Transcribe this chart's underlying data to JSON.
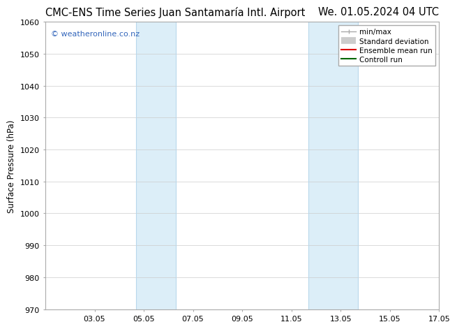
{
  "title_left": "CMC-ENS Time Series Juan Santamaría Intl. Airport",
  "title_right": "We. 01.05.2024 04 UTC",
  "ylabel": "Surface Pressure (hPa)",
  "watermark": "© weatheronline.co.nz",
  "ylim": [
    970,
    1060
  ],
  "yticks": [
    970,
    980,
    990,
    1000,
    1010,
    1020,
    1030,
    1040,
    1050,
    1060
  ],
  "xlim": [
    0,
    16
  ],
  "xtick_labels": [
    "03.05",
    "05.05",
    "07.05",
    "09.05",
    "11.05",
    "13.05",
    "15.05",
    "17.05"
  ],
  "xtick_positions": [
    2,
    4,
    6,
    8,
    10,
    12,
    14,
    16
  ],
  "shaded_bands": [
    {
      "x_start": 3.7,
      "x_end": 5.3,
      "color": "#dceef8"
    },
    {
      "x_start": 10.7,
      "x_end": 12.7,
      "color": "#dceef8"
    }
  ],
  "vertical_lines": [
    {
      "x": 3.7,
      "color": "#b8d8ec",
      "lw": 0.8
    },
    {
      "x": 5.3,
      "color": "#b8d8ec",
      "lw": 0.8
    },
    {
      "x": 10.7,
      "color": "#b8d8ec",
      "lw": 0.8
    },
    {
      "x": 12.7,
      "color": "#b8d8ec",
      "lw": 0.8
    }
  ],
  "watermark_color": "#3366bb",
  "background_color": "#ffffff",
  "plot_bg_color": "#ffffff",
  "grid_color": "#cccccc",
  "title_fontsize": 10.5,
  "axis_label_fontsize": 8.5,
  "tick_fontsize": 8,
  "legend_fontsize": 7.5,
  "legend_entries": [
    {
      "label": "min/max",
      "color": "#aaaaaa",
      "lw": 1.0
    },
    {
      "label": "Standard deviation",
      "color": "#cccccc",
      "lw": 7
    },
    {
      "label": "Ensemble mean run",
      "color": "#dd0000",
      "lw": 1.5
    },
    {
      "label": "Controll run",
      "color": "#006600",
      "lw": 1.5
    }
  ]
}
